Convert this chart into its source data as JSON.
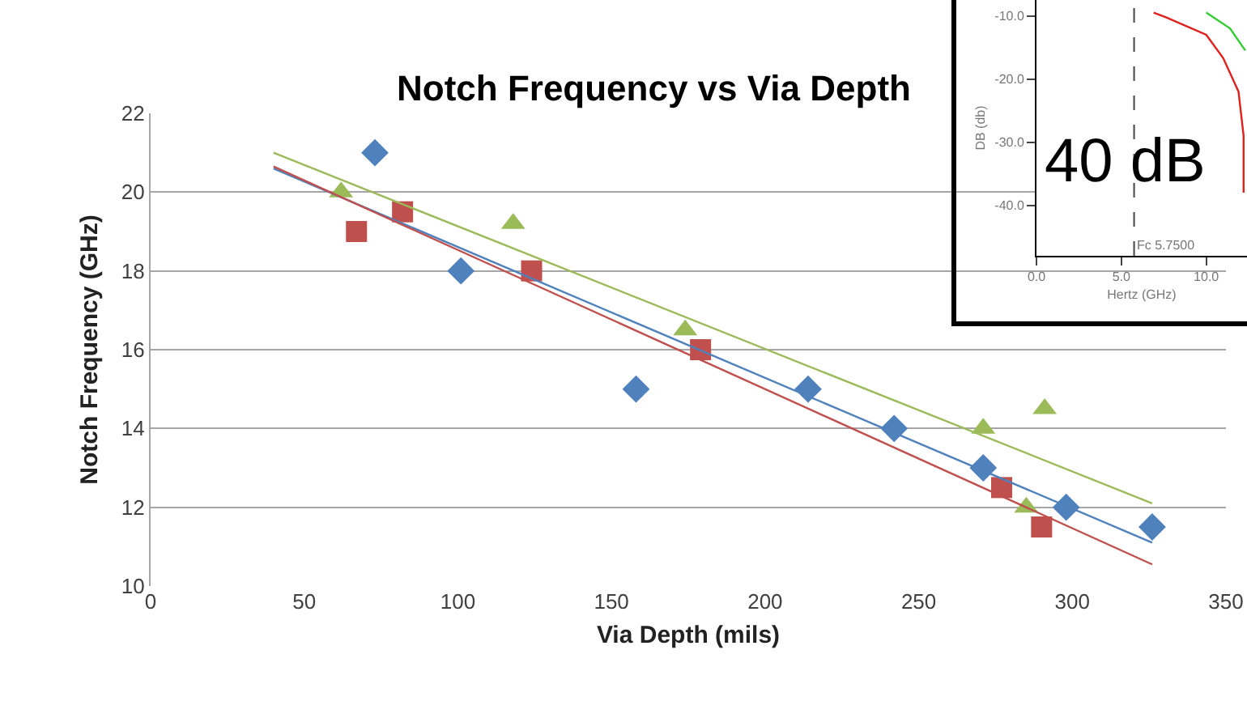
{
  "chart_data": [
    {
      "type": "scatter",
      "title": "Notch Frequency vs Via Depth",
      "xlabel": "Via Depth (mils)",
      "ylabel": "Notch Frequency (GHz)",
      "xlim": [
        0,
        350
      ],
      "xticks": [
        0,
        50,
        100,
        150,
        200,
        250,
        300,
        350
      ],
      "ylim": [
        10,
        22
      ],
      "yticks": [
        10,
        12,
        14,
        16,
        18,
        20,
        22
      ],
      "grid": "y",
      "series": [
        {
          "color": "#4f81bd",
          "marker": "diamond",
          "x": [
            73,
            101,
            158,
            214,
            242,
            271,
            298,
            326
          ],
          "values": [
            21,
            18,
            15,
            15,
            14,
            13,
            12,
            11.5
          ]
        },
        {
          "color": "#c0504d",
          "marker": "square",
          "x": [
            67,
            82,
            124,
            179,
            277,
            290
          ],
          "values": [
            19,
            19.5,
            18,
            16,
            12.5,
            11.5
          ]
        },
        {
          "color": "#9bbb59",
          "marker": "triangle",
          "x": [
            62,
            118,
            174,
            271,
            285,
            291
          ],
          "values": [
            20,
            19.2,
            16.5,
            14,
            12,
            14.5
          ]
        },
        {
          "type": "line",
          "color": "#4f81bd",
          "marker": "none",
          "x": [
            40,
            326
          ],
          "values": [
            20.6,
            11.1
          ]
        },
        {
          "type": "line",
          "color": "#c0504d",
          "marker": "none",
          "x": [
            40,
            326
          ],
          "values": [
            20.65,
            10.55
          ]
        },
        {
          "type": "line",
          "color": "#9bbb59",
          "marker": "none",
          "x": [
            40,
            326
          ],
          "values": [
            21.0,
            12.1
          ]
        }
      ]
    },
    {
      "type": "line",
      "xlabel": "Hertz (GHz)",
      "ylabel": "DB (db)",
      "xlim": [
        0,
        12.4
      ],
      "xticks": [
        {
          "value": 0,
          "label": "0.0"
        },
        {
          "value": 5,
          "label": "5.0"
        },
        {
          "value": 10,
          "label": "10.0"
        }
      ],
      "ylim": [
        -48,
        -7.5
      ],
      "yticks": [
        {
          "value": -10,
          "label": "-10.0"
        },
        {
          "value": -20,
          "label": "-20.0"
        },
        {
          "value": -30,
          "label": "-30.0"
        },
        {
          "value": -40,
          "label": "-40.0"
        }
      ],
      "grid": false,
      "ref_lines": [
        {
          "axis": "x",
          "value": 5.75,
          "label": "Fc 5.7500",
          "line_style": "dashed",
          "color": "#444444"
        }
      ],
      "annotations": [
        "40 dB"
      ],
      "series": [
        {
          "color": "#e0201c",
          "x": [
            6.9,
            7.6,
            10,
            11,
            11.9,
            12.2,
            12.2
          ],
          "values": [
            -9.5,
            -10.2,
            -13,
            -16.7,
            -22,
            -29,
            -38
          ]
        },
        {
          "color": "#33cc33",
          "x": [
            10,
            11.4,
            12.3
          ],
          "values": [
            -9.5,
            -12,
            -15.5
          ]
        }
      ]
    }
  ]
}
